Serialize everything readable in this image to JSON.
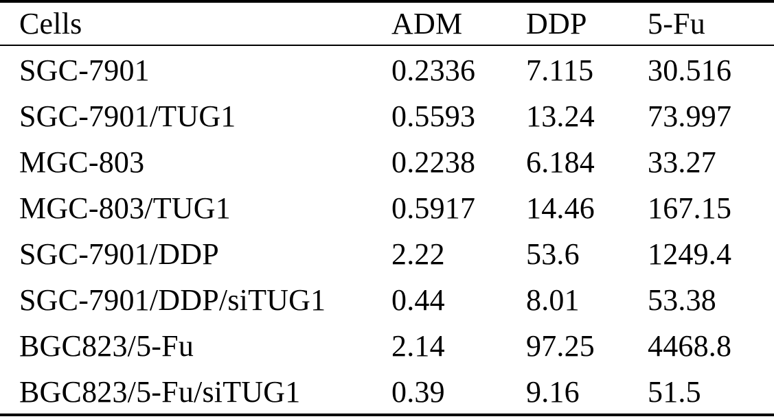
{
  "table": {
    "columns": [
      "Cells",
      "ADM",
      "DDP",
      "5-Fu"
    ],
    "rows": [
      [
        "SGC-7901",
        "0.2336",
        "7.115",
        "30.516"
      ],
      [
        "SGC-7901/TUG1",
        "0.5593",
        "13.24",
        "73.997"
      ],
      [
        "MGC-803",
        "0.2238",
        "6.184",
        "33.27"
      ],
      [
        "MGC-803/TUG1",
        "0.5917",
        "14.46",
        "167.15"
      ],
      [
        "SGC-7901/DDP",
        "2.22",
        "53.6",
        "1249.4"
      ],
      [
        "SGC-7901/DDP/siTUG1",
        "0.44",
        "8.01",
        "53.38"
      ],
      [
        "BGC823/5-Fu",
        "2.14",
        "97.25",
        "4468.8"
      ],
      [
        "BGC823/5-Fu/siTUG1",
        "0.39",
        "9.16",
        "51.5"
      ]
    ]
  },
  "colors": {
    "text": "#000000",
    "background": "#ffffff",
    "rule": "#000000"
  }
}
